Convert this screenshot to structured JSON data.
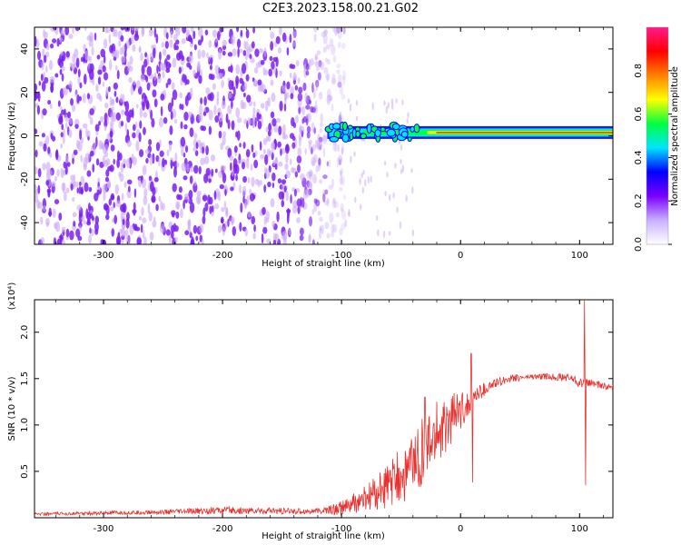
{
  "title": "C2E3.2023.158.00.21.G02",
  "colors": {
    "signal_line": "#e8322f",
    "speckle": "#7a1ef0",
    "speckle_light": "#c9a6f5",
    "colormap": [
      "#ffffff",
      "#c9b0ff",
      "#7a00ff",
      "#0000ff",
      "#00e5ff",
      "#00ff40",
      "#ffff00",
      "#ff8000",
      "#ff0000",
      "#ff1a8c"
    ]
  },
  "chart_data": [
    {
      "type": "heatmap",
      "title": "",
      "xlabel": "Height of straight line (km)",
      "ylabel": "Frequency (Hz)",
      "xlim": [
        -358,
        128
      ],
      "ylim": [
        -50,
        50
      ],
      "xticks": [
        -300,
        -200,
        -100,
        0,
        100
      ],
      "yticks": [
        -40,
        -20,
        0,
        20,
        40
      ],
      "tick_labels_x": [
        "-300",
        "-200",
        "-100",
        "0",
        "100"
      ],
      "tick_labels_y": [
        "-40",
        "-20",
        "0",
        "20",
        "40"
      ],
      "features": {
        "noise_region_end_km": -105,
        "signal_line_start_km": -112,
        "signal_line_freq_hz": 1.5
      },
      "colorbar": {
        "label": "Normalized spectral amplitude",
        "range": [
          0.0,
          1.0
        ],
        "ticks": [
          0.0,
          0.2,
          0.4,
          0.6,
          0.8
        ],
        "tick_labels": [
          "0.0",
          "0.2",
          "0.4",
          "0.6",
          "0.8"
        ]
      }
    },
    {
      "type": "line",
      "title": "",
      "xlabel": "Height of straight line (km)",
      "ylabel": "SNR (10 * v/v)",
      "yscale_label": "(x10⁴)",
      "xlim": [
        -358,
        128
      ],
      "ylim": [
        0.0,
        2.35
      ],
      "xticks": [
        -300,
        -200,
        -100,
        0,
        100
      ],
      "yticks": [
        0.5,
        1.0,
        1.5,
        2.0
      ],
      "tick_labels_x": [
        "-300",
        "-200",
        "-100",
        "0",
        "100"
      ],
      "tick_labels_y": [
        "0.5",
        "1.0",
        "1.5",
        "2.0"
      ],
      "series": [
        {
          "x": [
            -358,
            -300,
            -250,
            -200,
            -150,
            -120,
            -100,
            -80,
            -60,
            -45,
            -35,
            -25,
            -15,
            -5,
            5,
            10,
            20,
            30,
            40,
            60,
            80,
            95,
            100,
            103,
            105,
            110,
            128
          ],
          "y": [
            0.04,
            0.05,
            0.06,
            0.08,
            0.07,
            0.07,
            0.1,
            0.2,
            0.35,
            0.5,
            0.65,
            0.8,
            0.95,
            1.1,
            1.2,
            1.3,
            1.38,
            1.45,
            1.5,
            1.52,
            1.52,
            1.5,
            1.45,
            1.45,
            1.45,
            1.45,
            1.4
          ],
          "noise_amp": [
            0.015,
            0.02,
            0.025,
            0.04,
            0.035,
            0.03,
            0.08,
            0.15,
            0.25,
            0.35,
            0.4,
            0.35,
            0.3,
            0.25,
            0.15,
            0.1,
            0.08,
            0.05,
            0.04,
            0.03,
            0.04,
            0.05,
            0.06,
            0.06,
            0.05,
            0.04,
            0.03
          ],
          "spikes": [
            {
              "x": -30,
              "y": 1.3
            },
            {
              "x": -20,
              "y": 1.25
            },
            {
              "x": 9,
              "y": 1.77
            },
            {
              "x": 10,
              "y": 0.38
            },
            {
              "x": 104,
              "y": 2.35
            },
            {
              "x": 105,
              "y": 0.35
            }
          ]
        }
      ]
    }
  ]
}
